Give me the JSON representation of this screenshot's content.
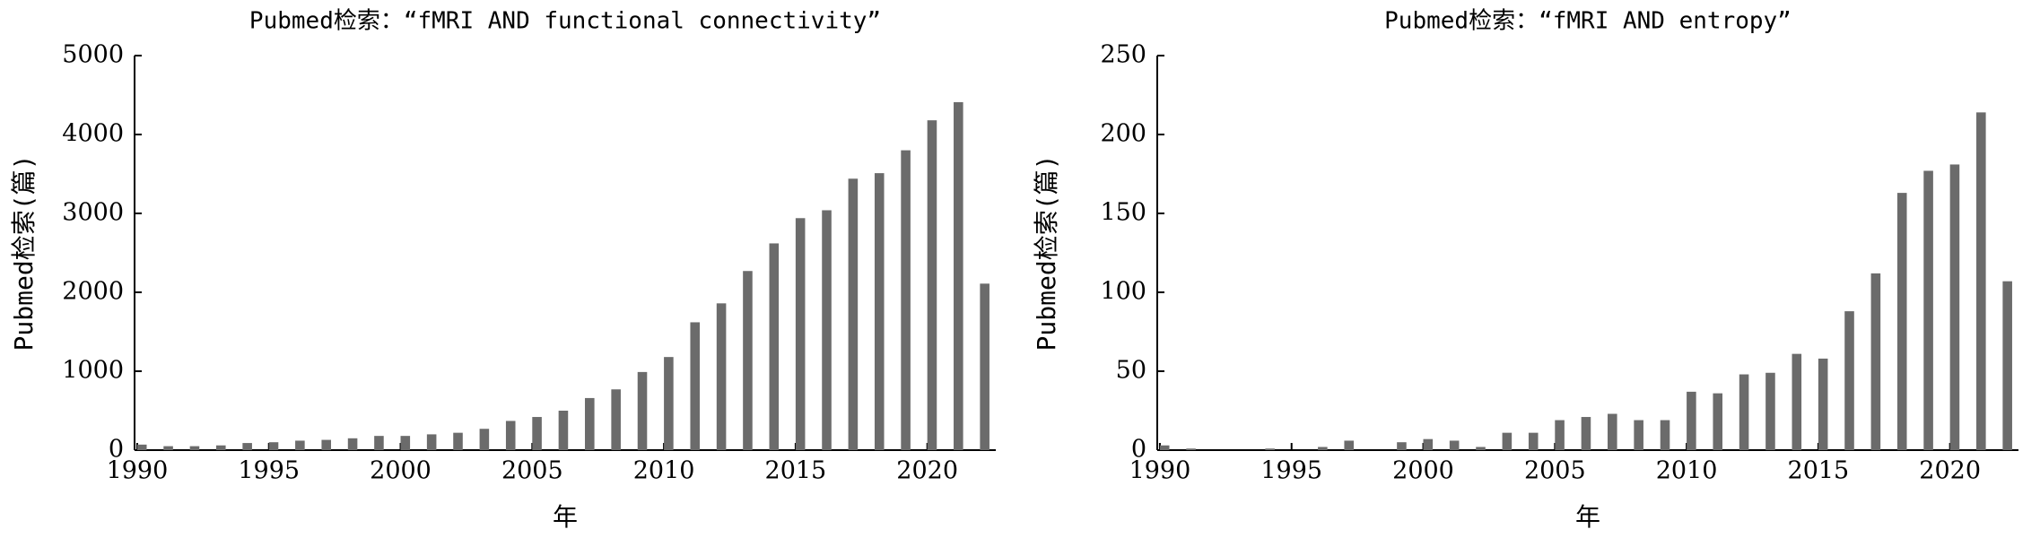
{
  "chart_data": [
    {
      "type": "bar",
      "title": "Pubmed检索：“fMRI AND functional connectivity”",
      "xlabel": "年",
      "ylabel": "Pubmed检索(篇)",
      "color": "#6b6b6b",
      "x": [
        1990,
        1991,
        1992,
        1993,
        1994,
        1995,
        1996,
        1997,
        1998,
        1999,
        2000,
        2001,
        2002,
        2003,
        2004,
        2005,
        2006,
        2007,
        2008,
        2009,
        2010,
        2011,
        2012,
        2013,
        2014,
        2015,
        2016,
        2017,
        2018,
        2019,
        2020,
        2021,
        2022
      ],
      "values": [
        70,
        50,
        50,
        60,
        90,
        100,
        120,
        130,
        150,
        180,
        180,
        200,
        220,
        270,
        370,
        420,
        500,
        660,
        770,
        990,
        1180,
        1620,
        1860,
        2270,
        2620,
        2940,
        3040,
        3440,
        3510,
        3800,
        4180,
        4410,
        2110
      ],
      "xlim": [
        1989.9,
        2022.6
      ],
      "xticks": [
        1990,
        1995,
        2000,
        2005,
        2010,
        2015,
        2020
      ],
      "ylim": [
        0,
        5000
      ],
      "yticks": [
        0,
        1000,
        2000,
        3000,
        4000,
        5000
      ]
    },
    {
      "type": "bar",
      "title": "Pubmed检索：“fMRI AND entropy”",
      "xlabel": "年",
      "ylabel": "Pubmed检索(篇)",
      "color": "#6b6b6b",
      "x": [
        1990,
        1991,
        1992,
        1993,
        1994,
        1995,
        1996,
        1997,
        1998,
        1999,
        2000,
        2001,
        2002,
        2003,
        2004,
        2005,
        2006,
        2007,
        2008,
        2009,
        2010,
        2011,
        2012,
        2013,
        2014,
        2015,
        2016,
        2017,
        2018,
        2019,
        2020,
        2021,
        2022
      ],
      "values": [
        3,
        1,
        0,
        0,
        1,
        0,
        2,
        6,
        0,
        5,
        7,
        6,
        2,
        11,
        11,
        19,
        21,
        23,
        19,
        19,
        37,
        36,
        48,
        49,
        61,
        58,
        88,
        112,
        163,
        177,
        181,
        214,
        107
      ],
      "xlim": [
        1989.9,
        2022.6
      ],
      "xticks": [
        1990,
        1995,
        2000,
        2005,
        2010,
        2015,
        2020
      ],
      "ylim": [
        0,
        250
      ],
      "yticks": [
        0,
        50,
        100,
        150,
        200,
        250
      ]
    }
  ]
}
